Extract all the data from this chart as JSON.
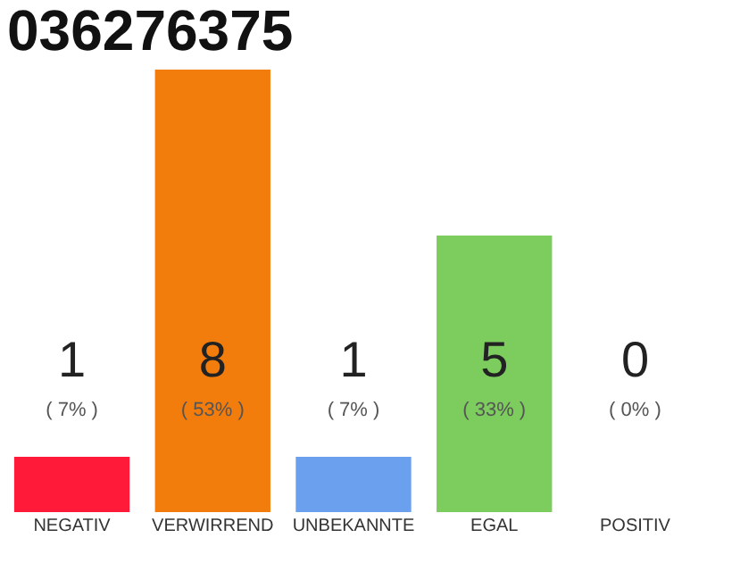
{
  "chart_data": {
    "type": "bar",
    "title": "036276375",
    "categories": [
      "NEGATIV",
      "VERWIRREND",
      "UNBEKANNTE",
      "EGAL",
      "POSITIV"
    ],
    "values": [
      1,
      8,
      1,
      5,
      0
    ],
    "colors": [
      "#ff1a3a",
      "#f27c0c",
      "#6aa0ee",
      "#7dcc5e",
      "#bbbbbb"
    ],
    "data_labels": true,
    "tick_labels": "x",
    "grid": false,
    "annotations": [
      "( 7% )",
      "( 53% )",
      "( 7% )",
      "( 33% )",
      "( 0% )"
    ]
  }
}
